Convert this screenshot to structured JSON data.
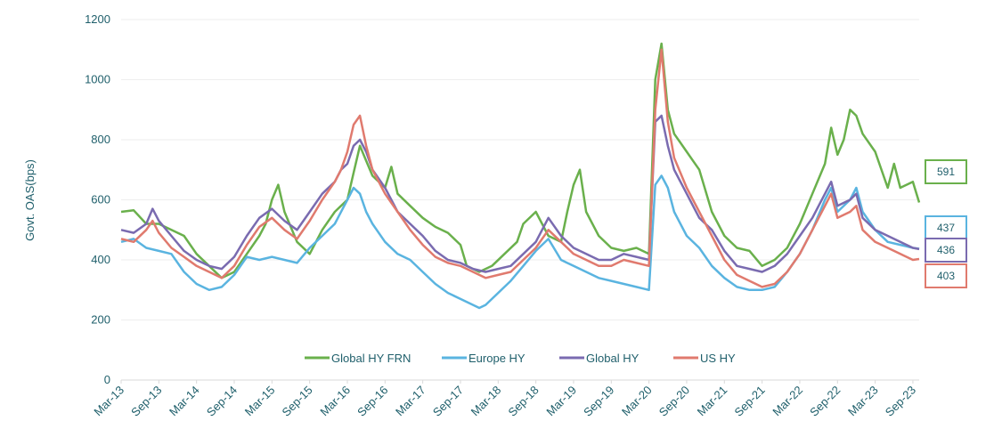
{
  "chart_data": {
    "type": "line",
    "ylabel": "Govt. OAS(bps)",
    "ylim": [
      0,
      1200
    ],
    "yticks": [
      0,
      200,
      400,
      600,
      800,
      1000,
      1200
    ],
    "ytick_labels": [
      "0",
      "200",
      "400",
      "600",
      "800",
      "1000",
      "1200"
    ],
    "xlim": [
      0,
      127
    ],
    "xticks": [
      0,
      6,
      12,
      18,
      24,
      30,
      36,
      42,
      48,
      54,
      60,
      66,
      72,
      78,
      84,
      90,
      96,
      102,
      108,
      114,
      120,
      126
    ],
    "xtick_labels": [
      "Mar-13",
      "Sep-13",
      "Mar-14",
      "Sep-14",
      "Mar-15",
      "Sep-15",
      "Mar-16",
      "Sep-16",
      "Mar-17",
      "Sep-17",
      "Mar-18",
      "Sep-18",
      "Mar-19",
      "Sep-19",
      "Mar-20",
      "Sep-20",
      "Mar-21",
      "Sep-21",
      "Mar-22",
      "Sep-22",
      "Mar-23",
      "Sep-23"
    ],
    "grid": "horizontal",
    "legend_position": "bottom-center",
    "series": [
      {
        "name": "Global HY FRN",
        "color": "#6ab04c",
        "end_label": "591",
        "points": [
          [
            0,
            560
          ],
          [
            2,
            565
          ],
          [
            4,
            520
          ],
          [
            6,
            520
          ],
          [
            8,
            500
          ],
          [
            10,
            480
          ],
          [
            12,
            420
          ],
          [
            14,
            380
          ],
          [
            16,
            340
          ],
          [
            18,
            360
          ],
          [
            20,
            420
          ],
          [
            22,
            480
          ],
          [
            23,
            520
          ],
          [
            24,
            600
          ],
          [
            25,
            650
          ],
          [
            26,
            560
          ],
          [
            28,
            460
          ],
          [
            30,
            420
          ],
          [
            32,
            500
          ],
          [
            34,
            560
          ],
          [
            36,
            600
          ],
          [
            37,
            690
          ],
          [
            38,
            780
          ],
          [
            39,
            730
          ],
          [
            40,
            680
          ],
          [
            42,
            640
          ],
          [
            43,
            710
          ],
          [
            44,
            620
          ],
          [
            46,
            580
          ],
          [
            48,
            540
          ],
          [
            50,
            510
          ],
          [
            52,
            490
          ],
          [
            54,
            450
          ],
          [
            55,
            380
          ],
          [
            57,
            360
          ],
          [
            59,
            380
          ],
          [
            61,
            420
          ],
          [
            63,
            460
          ],
          [
            64,
            520
          ],
          [
            66,
            560
          ],
          [
            68,
            480
          ],
          [
            70,
            460
          ],
          [
            71,
            560
          ],
          [
            72,
            650
          ],
          [
            73,
            700
          ],
          [
            74,
            560
          ],
          [
            76,
            480
          ],
          [
            78,
            440
          ],
          [
            80,
            430
          ],
          [
            82,
            440
          ],
          [
            84,
            420
          ],
          [
            85,
            1000
          ],
          [
            86,
            1120
          ],
          [
            87,
            900
          ],
          [
            88,
            820
          ],
          [
            90,
            760
          ],
          [
            91,
            730
          ],
          [
            92,
            700
          ],
          [
            94,
            560
          ],
          [
            96,
            480
          ],
          [
            98,
            440
          ],
          [
            100,
            430
          ],
          [
            102,
            380
          ],
          [
            104,
            400
          ],
          [
            106,
            440
          ],
          [
            108,
            520
          ],
          [
            110,
            620
          ],
          [
            112,
            720
          ],
          [
            113,
            840
          ],
          [
            114,
            750
          ],
          [
            115,
            800
          ],
          [
            116,
            900
          ],
          [
            117,
            880
          ],
          [
            118,
            820
          ],
          [
            120,
            760
          ],
          [
            122,
            640
          ],
          [
            123,
            720
          ],
          [
            124,
            640
          ],
          [
            126,
            660
          ],
          [
            127,
            591
          ]
        ]
      },
      {
        "name": "Europe HY",
        "color": "#5ab4e0",
        "end_label": "437",
        "points": [
          [
            0,
            460
          ],
          [
            2,
            470
          ],
          [
            4,
            440
          ],
          [
            6,
            430
          ],
          [
            8,
            420
          ],
          [
            10,
            360
          ],
          [
            12,
            320
          ],
          [
            14,
            300
          ],
          [
            16,
            310
          ],
          [
            18,
            350
          ],
          [
            20,
            410
          ],
          [
            22,
            400
          ],
          [
            24,
            410
          ],
          [
            26,
            400
          ],
          [
            28,
            390
          ],
          [
            30,
            440
          ],
          [
            32,
            480
          ],
          [
            34,
            520
          ],
          [
            36,
            600
          ],
          [
            37,
            640
          ],
          [
            38,
            620
          ],
          [
            39,
            560
          ],
          [
            40,
            520
          ],
          [
            42,
            460
          ],
          [
            44,
            420
          ],
          [
            46,
            400
          ],
          [
            48,
            360
          ],
          [
            50,
            320
          ],
          [
            52,
            290
          ],
          [
            54,
            270
          ],
          [
            56,
            250
          ],
          [
            57,
            240
          ],
          [
            58,
            250
          ],
          [
            60,
            290
          ],
          [
            62,
            330
          ],
          [
            64,
            380
          ],
          [
            66,
            430
          ],
          [
            68,
            470
          ],
          [
            70,
            400
          ],
          [
            72,
            380
          ],
          [
            74,
            360
          ],
          [
            76,
            340
          ],
          [
            78,
            330
          ],
          [
            80,
            320
          ],
          [
            82,
            310
          ],
          [
            84,
            300
          ],
          [
            85,
            650
          ],
          [
            86,
            680
          ],
          [
            87,
            640
          ],
          [
            88,
            560
          ],
          [
            90,
            480
          ],
          [
            92,
            440
          ],
          [
            94,
            380
          ],
          [
            96,
            340
          ],
          [
            98,
            310
          ],
          [
            100,
            300
          ],
          [
            102,
            300
          ],
          [
            104,
            310
          ],
          [
            106,
            360
          ],
          [
            108,
            420
          ],
          [
            110,
            500
          ],
          [
            112,
            600
          ],
          [
            113,
            640
          ],
          [
            114,
            560
          ],
          [
            116,
            600
          ],
          [
            117,
            640
          ],
          [
            118,
            560
          ],
          [
            120,
            500
          ],
          [
            122,
            460
          ],
          [
            124,
            450
          ],
          [
            126,
            440
          ],
          [
            127,
            437
          ]
        ]
      },
      {
        "name": "Global HY",
        "color": "#7a6bb0",
        "end_label": "436",
        "points": [
          [
            0,
            500
          ],
          [
            2,
            490
          ],
          [
            4,
            520
          ],
          [
            5,
            570
          ],
          [
            6,
            530
          ],
          [
            8,
            480
          ],
          [
            10,
            430
          ],
          [
            12,
            400
          ],
          [
            14,
            380
          ],
          [
            16,
            370
          ],
          [
            18,
            410
          ],
          [
            20,
            480
          ],
          [
            22,
            540
          ],
          [
            24,
            570
          ],
          [
            26,
            530
          ],
          [
            28,
            500
          ],
          [
            30,
            560
          ],
          [
            32,
            620
          ],
          [
            34,
            660
          ],
          [
            35,
            700
          ],
          [
            36,
            720
          ],
          [
            37,
            780
          ],
          [
            38,
            800
          ],
          [
            39,
            760
          ],
          [
            40,
            700
          ],
          [
            42,
            640
          ],
          [
            44,
            560
          ],
          [
            46,
            520
          ],
          [
            48,
            480
          ],
          [
            50,
            430
          ],
          [
            52,
            400
          ],
          [
            54,
            390
          ],
          [
            56,
            370
          ],
          [
            58,
            360
          ],
          [
            60,
            370
          ],
          [
            62,
            380
          ],
          [
            64,
            420
          ],
          [
            66,
            460
          ],
          [
            68,
            540
          ],
          [
            70,
            480
          ],
          [
            72,
            440
          ],
          [
            74,
            420
          ],
          [
            76,
            400
          ],
          [
            78,
            400
          ],
          [
            80,
            420
          ],
          [
            82,
            410
          ],
          [
            84,
            400
          ],
          [
            85,
            860
          ],
          [
            86,
            880
          ],
          [
            87,
            780
          ],
          [
            88,
            700
          ],
          [
            90,
            620
          ],
          [
            92,
            540
          ],
          [
            94,
            500
          ],
          [
            96,
            430
          ],
          [
            98,
            380
          ],
          [
            100,
            370
          ],
          [
            102,
            360
          ],
          [
            104,
            380
          ],
          [
            106,
            420
          ],
          [
            108,
            480
          ],
          [
            110,
            540
          ],
          [
            112,
            620
          ],
          [
            113,
            660
          ],
          [
            114,
            580
          ],
          [
            116,
            600
          ],
          [
            117,
            620
          ],
          [
            118,
            540
          ],
          [
            120,
            500
          ],
          [
            122,
            480
          ],
          [
            124,
            460
          ],
          [
            126,
            440
          ],
          [
            127,
            436
          ]
        ]
      },
      {
        "name": "US HY",
        "color": "#e07a6e",
        "end_label": "403",
        "points": [
          [
            0,
            470
          ],
          [
            2,
            460
          ],
          [
            4,
            500
          ],
          [
            5,
            530
          ],
          [
            6,
            490
          ],
          [
            8,
            440
          ],
          [
            10,
            410
          ],
          [
            12,
            380
          ],
          [
            14,
            360
          ],
          [
            16,
            340
          ],
          [
            18,
            380
          ],
          [
            20,
            450
          ],
          [
            22,
            510
          ],
          [
            24,
            540
          ],
          [
            26,
            500
          ],
          [
            28,
            470
          ],
          [
            30,
            530
          ],
          [
            32,
            600
          ],
          [
            34,
            660
          ],
          [
            35,
            700
          ],
          [
            36,
            760
          ],
          [
            37,
            850
          ],
          [
            38,
            880
          ],
          [
            39,
            780
          ],
          [
            40,
            700
          ],
          [
            42,
            620
          ],
          [
            44,
            560
          ],
          [
            46,
            500
          ],
          [
            48,
            450
          ],
          [
            50,
            410
          ],
          [
            52,
            390
          ],
          [
            54,
            380
          ],
          [
            56,
            360
          ],
          [
            58,
            340
          ],
          [
            60,
            350
          ],
          [
            62,
            360
          ],
          [
            64,
            400
          ],
          [
            66,
            440
          ],
          [
            68,
            500
          ],
          [
            70,
            460
          ],
          [
            72,
            420
          ],
          [
            74,
            400
          ],
          [
            76,
            380
          ],
          [
            78,
            380
          ],
          [
            80,
            400
          ],
          [
            82,
            390
          ],
          [
            84,
            380
          ],
          [
            85,
            900
          ],
          [
            86,
            1100
          ],
          [
            87,
            860
          ],
          [
            88,
            740
          ],
          [
            90,
            640
          ],
          [
            92,
            560
          ],
          [
            94,
            480
          ],
          [
            96,
            400
          ],
          [
            98,
            350
          ],
          [
            100,
            330
          ],
          [
            102,
            310
          ],
          [
            104,
            320
          ],
          [
            106,
            360
          ],
          [
            108,
            420
          ],
          [
            110,
            500
          ],
          [
            112,
            580
          ],
          [
            113,
            620
          ],
          [
            114,
            540
          ],
          [
            116,
            560
          ],
          [
            117,
            580
          ],
          [
            118,
            500
          ],
          [
            120,
            460
          ],
          [
            122,
            440
          ],
          [
            124,
            420
          ],
          [
            126,
            400
          ],
          [
            127,
            403
          ]
        ]
      }
    ]
  }
}
